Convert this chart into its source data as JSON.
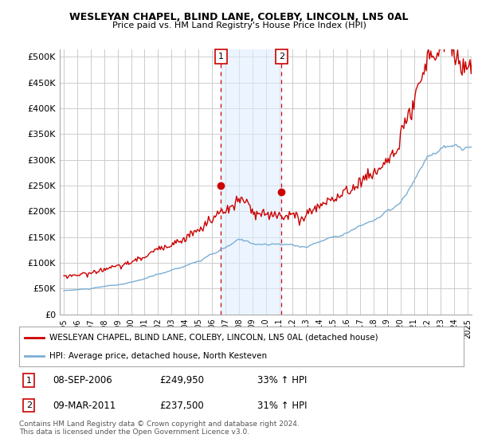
{
  "title1": "WESLEYAN CHAPEL, BLIND LANE, COLEBY, LINCOLN, LN5 0AL",
  "title2": "Price paid vs. HM Land Registry's House Price Index (HPI)",
  "ylabel_ticks": [
    "£0",
    "£50K",
    "£100K",
    "£150K",
    "£200K",
    "£250K",
    "£300K",
    "£350K",
    "£400K",
    "£450K",
    "£500K"
  ],
  "ytick_vals": [
    0,
    50000,
    100000,
    150000,
    200000,
    250000,
    300000,
    350000,
    400000,
    450000,
    500000
  ],
  "ylim": [
    0,
    515000
  ],
  "xlim_start": 1994.7,
  "xlim_end": 2025.3,
  "sale1_x": 2006.67,
  "sale1_y": 249950,
  "sale2_x": 2011.17,
  "sale2_y": 237500,
  "legend_line1": "WESLEYAN CHAPEL, BLIND LANE, COLEBY, LINCOLN, LN5 0AL (detached house)",
  "legend_line2": "HPI: Average price, detached house, North Kesteven",
  "footnote": "Contains HM Land Registry data © Crown copyright and database right 2024.\nThis data is licensed under the Open Government Licence v3.0.",
  "red_color": "#cc0000",
  "blue_color": "#7bafd4",
  "shade_color": "#ddeeff",
  "background_color": "#ffffff",
  "grid_color": "#cccccc"
}
